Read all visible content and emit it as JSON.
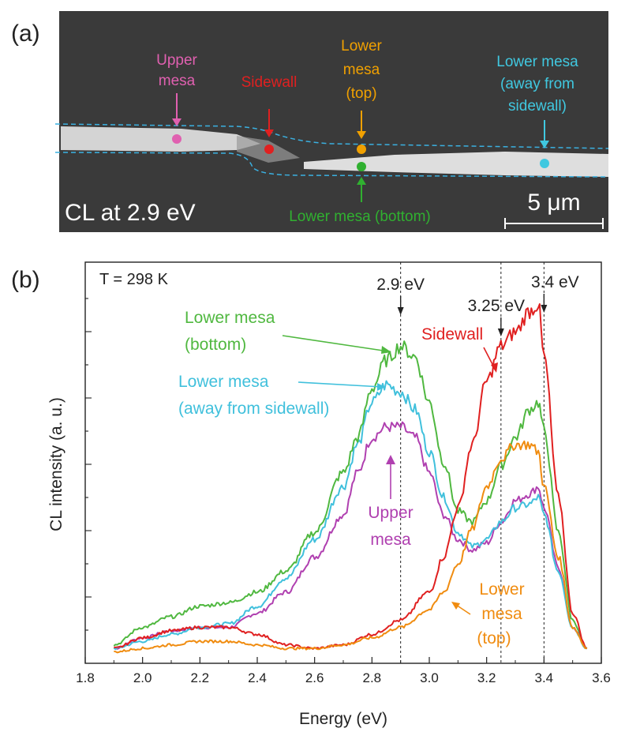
{
  "panel_a": {
    "label": "(a)",
    "caption": "CL at 2.9 eV",
    "scale_bar": "5 μm",
    "markers": [
      {
        "lines": [
          "Upper",
          "mesa"
        ],
        "color": "#e060b0"
      },
      {
        "lines": [
          "Sidewall"
        ],
        "color": "#e02020"
      },
      {
        "lines": [
          "Lower",
          "mesa",
          "(top)"
        ],
        "color": "#f0a000"
      },
      {
        "lines": [
          "Lower mesa (bottom)"
        ],
        "color": "#30b030"
      },
      {
        "lines": [
          "Lower mesa",
          "(away from",
          "sidewall)"
        ],
        "color": "#40c8e0"
      }
    ]
  },
  "panel_b": {
    "label": "(b)",
    "temperature": "T = 298 K"
  },
  "chart_data": {
    "type": "line",
    "xlabel": "Energy (eV)",
    "ylabel": "CL intensity (a. u.)",
    "xlim": [
      1.8,
      3.6
    ],
    "x_ticks": [
      "1.8",
      "2.0",
      "2.2",
      "2.4",
      "2.6",
      "2.8",
      "3.0",
      "3.2",
      "3.4",
      "3.6"
    ],
    "y_ticks_labeled": false,
    "ylim": [
      0,
      100
    ],
    "reference_lines": [
      {
        "x": 2.9,
        "label": "2.9 eV"
      },
      {
        "x": 3.25,
        "label": "3.25 eV"
      },
      {
        "x": 3.4,
        "label": "3.4 eV"
      }
    ],
    "series": [
      {
        "name": "Upper mesa",
        "color": "#b040b0",
        "label_lines": [
          "Upper",
          "mesa"
        ],
        "x": [
          1.9,
          2.0,
          2.1,
          2.2,
          2.3,
          2.4,
          2.5,
          2.6,
          2.7,
          2.75,
          2.8,
          2.85,
          2.9,
          2.95,
          3.0,
          3.05,
          3.1,
          3.15,
          3.2,
          3.25,
          3.3,
          3.35,
          3.38,
          3.4,
          3.45,
          3.5,
          3.55
        ],
        "y": [
          2,
          5,
          7,
          8,
          8,
          12,
          18,
          28,
          40,
          52,
          62,
          65,
          65,
          62,
          52,
          40,
          33,
          30,
          32,
          38,
          44,
          46,
          48,
          42,
          25,
          8,
          2
        ]
      },
      {
        "name": "Lower mesa (away from sidewall)",
        "color": "#40c0dc",
        "label_lines": [
          "Lower mesa",
          "(away from sidewall)"
        ],
        "x": [
          1.9,
          2.0,
          2.1,
          2.2,
          2.3,
          2.4,
          2.5,
          2.6,
          2.7,
          2.75,
          2.8,
          2.85,
          2.9,
          2.95,
          3.0,
          3.05,
          3.1,
          3.15,
          3.2,
          3.25,
          3.3,
          3.35,
          3.38,
          3.4,
          3.45,
          3.5,
          3.55
        ],
        "y": [
          2,
          4,
          6,
          8,
          9,
          14,
          22,
          33,
          48,
          60,
          72,
          77,
          75,
          70,
          58,
          45,
          35,
          31,
          33,
          38,
          42,
          43,
          45,
          40,
          24,
          8,
          2
        ]
      },
      {
        "name": "Lower mesa (bottom)",
        "color": "#50b840",
        "label_lines": [
          "Lower mesa",
          "(bottom)"
        ],
        "x": [
          1.9,
          2.0,
          2.1,
          2.2,
          2.3,
          2.4,
          2.5,
          2.6,
          2.7,
          2.75,
          2.8,
          2.85,
          2.9,
          2.95,
          3.0,
          3.05,
          3.1,
          3.15,
          3.2,
          3.25,
          3.3,
          3.35,
          3.38,
          3.4,
          3.45,
          3.5,
          3.55
        ],
        "y": [
          3,
          8,
          11,
          14,
          15,
          18,
          24,
          35,
          52,
          62,
          76,
          84,
          88,
          85,
          72,
          55,
          41,
          38,
          44,
          54,
          62,
          70,
          72,
          64,
          35,
          10,
          2
        ]
      },
      {
        "name": "Sidewall",
        "color": "#e02020",
        "label_lines": [
          "Sidewall"
        ],
        "x": [
          1.9,
          2.0,
          2.1,
          2.2,
          2.3,
          2.4,
          2.5,
          2.6,
          2.7,
          2.8,
          2.9,
          3.0,
          3.05,
          3.1,
          3.15,
          3.2,
          3.25,
          3.3,
          3.35,
          3.38,
          3.4,
          3.45,
          3.5,
          3.55
        ],
        "y": [
          2,
          5,
          7,
          8,
          8,
          6,
          3,
          2,
          3,
          6,
          10,
          18,
          28,
          42,
          60,
          78,
          88,
          92,
          98,
          100,
          85,
          45,
          12,
          2
        ]
      },
      {
        "name": "Lower mesa (top)",
        "color": "#f08c10",
        "label_lines": [
          "Lower",
          "mesa",
          "(top)"
        ],
        "x": [
          1.9,
          2.0,
          2.1,
          2.2,
          2.3,
          2.4,
          2.5,
          2.6,
          2.7,
          2.8,
          2.9,
          3.0,
          3.05,
          3.1,
          3.15,
          3.2,
          3.25,
          3.3,
          3.35,
          3.38,
          3.4,
          3.45,
          3.5,
          3.55
        ],
        "y": [
          1,
          2,
          3,
          4,
          4,
          3,
          2,
          2,
          3,
          5,
          8,
          13,
          18,
          26,
          36,
          48,
          56,
          60,
          60,
          58,
          48,
          28,
          8,
          2
        ]
      }
    ]
  }
}
